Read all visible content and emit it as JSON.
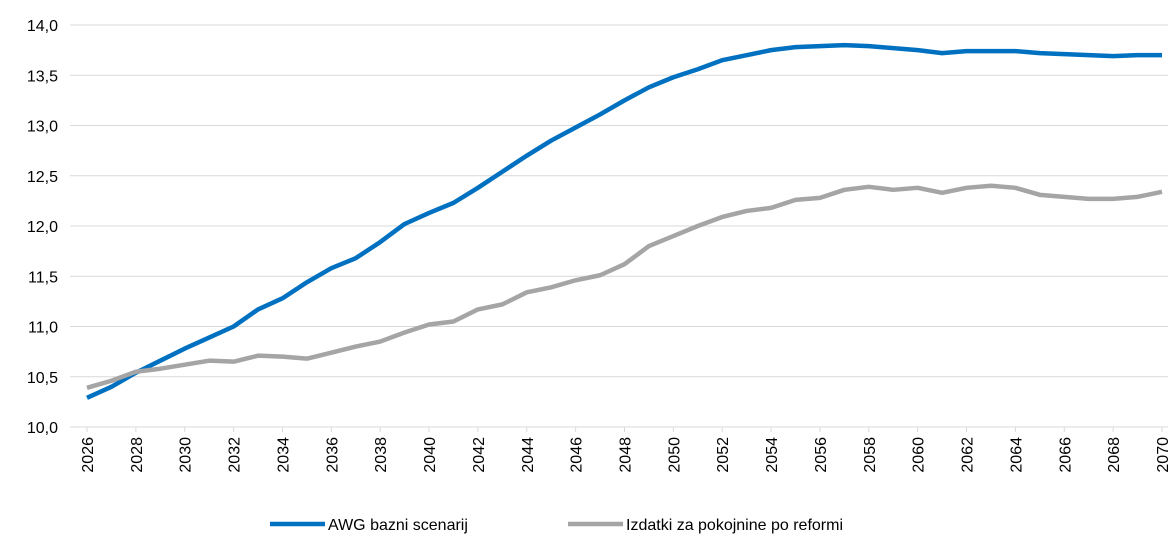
{
  "chart_data": {
    "type": "line",
    "x": [
      2026,
      2027,
      2028,
      2029,
      2030,
      2031,
      2032,
      2033,
      2034,
      2035,
      2036,
      2037,
      2038,
      2039,
      2040,
      2041,
      2042,
      2043,
      2044,
      2045,
      2046,
      2047,
      2048,
      2049,
      2050,
      2051,
      2052,
      2053,
      2054,
      2055,
      2056,
      2057,
      2058,
      2059,
      2060,
      2061,
      2062,
      2063,
      2064,
      2065,
      2066,
      2067,
      2068,
      2069,
      2070
    ],
    "series": [
      {
        "name": "AWG bazni scenarij",
        "color": "#0070c0",
        "values": [
          10.29,
          10.4,
          10.54,
          10.66,
          10.78,
          10.89,
          11.0,
          11.17,
          11.28,
          11.44,
          11.58,
          11.68,
          11.84,
          12.02,
          12.13,
          12.23,
          12.38,
          12.54,
          12.7,
          12.85,
          12.98,
          13.11,
          13.25,
          13.38,
          13.48,
          13.56,
          13.65,
          13.7,
          13.75,
          13.78,
          13.79,
          13.8,
          13.79,
          13.77,
          13.75,
          13.72,
          13.74,
          13.74,
          13.74,
          13.72,
          13.71,
          13.7,
          13.69,
          13.7,
          13.7
        ]
      },
      {
        "name": "Izdatki za pokojnine po reformi",
        "color": "#a5a5a5",
        "values": [
          10.39,
          10.46,
          10.55,
          10.58,
          10.62,
          10.66,
          10.65,
          10.71,
          10.7,
          10.68,
          10.74,
          10.8,
          10.85,
          10.94,
          11.02,
          11.05,
          11.17,
          11.22,
          11.34,
          11.39,
          11.46,
          11.51,
          11.62,
          11.8,
          11.9,
          12.0,
          12.09,
          12.15,
          12.18,
          12.26,
          12.28,
          12.36,
          12.39,
          12.36,
          12.38,
          12.33,
          12.38,
          12.4,
          12.38,
          12.31,
          12.29,
          12.27,
          12.27,
          12.29,
          12.34
        ]
      }
    ],
    "xlim": [
      2026,
      2070
    ],
    "xticks": [
      2026,
      2028,
      2030,
      2032,
      2034,
      2036,
      2038,
      2040,
      2042,
      2044,
      2046,
      2048,
      2050,
      2052,
      2054,
      2056,
      2058,
      2060,
      2062,
      2064,
      2066,
      2068,
      2070
    ],
    "ylim": [
      10,
      14
    ],
    "yticks": [
      {
        "value": 10,
        "label": "10,0"
      },
      {
        "value": 10.5,
        "label": "10,5"
      },
      {
        "value": 11,
        "label": "11,0"
      },
      {
        "value": 11.5,
        "label": "11,5"
      },
      {
        "value": 12,
        "label": "12,0"
      },
      {
        "value": 12.5,
        "label": "12,5"
      },
      {
        "value": 13,
        "label": "13,0"
      },
      {
        "value": 13.5,
        "label": "13,5"
      },
      {
        "value": 14,
        "label": "14,0"
      }
    ],
    "grid": true,
    "legend": "bottom"
  }
}
